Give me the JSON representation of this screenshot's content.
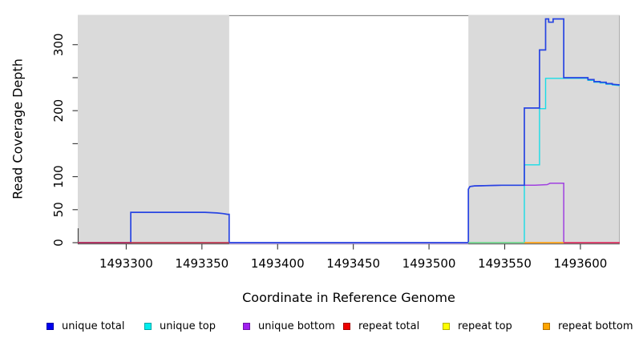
{
  "axes": {
    "x_title": "Coordinate in Reference Genome",
    "y_title": "Read Coverage Depth",
    "x_ticks": [
      {
        "value": 1493300,
        "label": "1493300"
      },
      {
        "value": 1493350,
        "label": "1493350"
      },
      {
        "value": 1493400,
        "label": "1493400"
      },
      {
        "value": 1493450,
        "label": "1493450"
      },
      {
        "value": 1493500,
        "label": "1493500"
      },
      {
        "value": 1493550,
        "label": "1493550"
      },
      {
        "value": 1493600,
        "label": "1493600"
      }
    ],
    "y_ticks": [
      {
        "value": 0,
        "label": "0"
      },
      {
        "value": 50,
        "label": "50"
      },
      {
        "value": 100,
        "label": "100"
      },
      {
        "value": 150,
        "label": ""
      },
      {
        "value": 200,
        "label": "200"
      },
      {
        "value": 250,
        "label": ""
      },
      {
        "value": 300,
        "label": "300"
      }
    ]
  },
  "legend": {
    "items": [
      {
        "label": "unique total",
        "color": "#0000EE"
      },
      {
        "label": "unique top",
        "color": "#00EEEE"
      },
      {
        "label": "unique bottom",
        "color": "#A020F0"
      },
      {
        "label": "repeat total",
        "color": "#EE0000"
      },
      {
        "label": "repeat top",
        "color": "#FFFF00"
      },
      {
        "label": "repeat bottom",
        "color": "#FFA500"
      }
    ]
  },
  "chart_data": {
    "type": "line",
    "xlabel": "Coordinate in Reference Genome",
    "ylabel": "Read Coverage Depth",
    "xlim": [
      1493268,
      1493626
    ],
    "ylim": [
      0,
      344
    ],
    "grid": false,
    "legend_position": "bottom",
    "shaded_regions": [
      {
        "x0": 1493268,
        "x1": 1493368,
        "color": "#DADADA"
      },
      {
        "x0": 1493526,
        "x1": 1493626,
        "color": "#DADADA"
      }
    ],
    "series": [
      {
        "name": "unique bottom",
        "line_color": "#A040E0",
        "points": [
          [
            1493268,
            0
          ],
          [
            1493526,
            0
          ],
          [
            1493526,
            81
          ],
          [
            1493527,
            85
          ],
          [
            1493530,
            86
          ],
          [
            1493548,
            87
          ],
          [
            1493570,
            87
          ],
          [
            1493578,
            88
          ],
          [
            1493580,
            90
          ],
          [
            1493589,
            90
          ],
          [
            1493589,
            0
          ],
          [
            1493626,
            0
          ]
        ]
      },
      {
        "name": "unique top",
        "line_color": "#18DCE6",
        "points": [
          [
            1493268,
            0
          ],
          [
            1493563,
            0
          ],
          [
            1493563,
            118
          ],
          [
            1493573,
            118
          ],
          [
            1493573,
            203
          ],
          [
            1493577,
            203
          ],
          [
            1493577,
            249
          ],
          [
            1493589,
            249
          ],
          [
            1493605,
            249
          ],
          [
            1493605,
            246
          ],
          [
            1493609,
            246
          ],
          [
            1493609,
            243
          ],
          [
            1493613,
            243
          ],
          [
            1493613,
            242
          ],
          [
            1493617,
            242
          ],
          [
            1493617,
            240
          ],
          [
            1493621,
            240
          ],
          [
            1493621,
            239
          ],
          [
            1493626,
            238
          ]
        ]
      },
      {
        "name": "unique total",
        "line_color": "#2744E2",
        "points": [
          [
            1493268,
            0
          ],
          [
            1493303,
            0
          ],
          [
            1493303,
            46
          ],
          [
            1493352,
            46
          ],
          [
            1493360,
            45
          ],
          [
            1493364,
            44
          ],
          [
            1493367,
            43
          ],
          [
            1493368,
            43
          ],
          [
            1493368,
            0
          ],
          [
            1493526,
            0
          ],
          [
            1493526,
            81
          ],
          [
            1493527,
            85
          ],
          [
            1493530,
            86
          ],
          [
            1493548,
            87
          ],
          [
            1493563,
            87
          ],
          [
            1493563,
            204
          ],
          [
            1493573,
            204
          ],
          [
            1493573,
            292
          ],
          [
            1493577,
            292
          ],
          [
            1493577,
            339
          ],
          [
            1493579,
            339
          ],
          [
            1493579,
            334
          ],
          [
            1493582,
            334
          ],
          [
            1493582,
            339
          ],
          [
            1493589,
            339
          ],
          [
            1493589,
            250
          ],
          [
            1493605,
            250
          ],
          [
            1493605,
            247
          ],
          [
            1493609,
            247
          ],
          [
            1493609,
            244
          ],
          [
            1493613,
            244
          ],
          [
            1493613,
            243
          ],
          [
            1493617,
            243
          ],
          [
            1493617,
            241
          ],
          [
            1493621,
            241
          ],
          [
            1493621,
            240
          ],
          [
            1493626,
            239
          ]
        ]
      },
      {
        "name": "repeat total",
        "line_color": "#DC2840",
        "points": [
          [
            1493268,
            0
          ],
          [
            1493626,
            0
          ]
        ]
      },
      {
        "name": "repeat top",
        "line_color": "#E8E020",
        "points": [
          [
            1493268,
            0
          ],
          [
            1493626,
            0
          ]
        ]
      },
      {
        "name": "repeat bottom",
        "line_color": "#FFA216",
        "points": [
          [
            1493268,
            0
          ],
          [
            1493626,
            0
          ]
        ]
      }
    ],
    "zero_line_segments": [
      {
        "x0": 1493268,
        "x1": 1493368,
        "color": "#D8283C"
      },
      {
        "x0": 1493368,
        "x1": 1493526,
        "color": "#C2A6EE",
        "note": "purple edge under blue"
      },
      {
        "x0": 1493526,
        "x1": 1493563,
        "color": "#7CD98C"
      },
      {
        "x0": 1493563,
        "x1": 1493589,
        "color": "#FFA216"
      },
      {
        "x0": 1493589,
        "x1": 1493626,
        "color": "#E0335C"
      }
    ]
  }
}
